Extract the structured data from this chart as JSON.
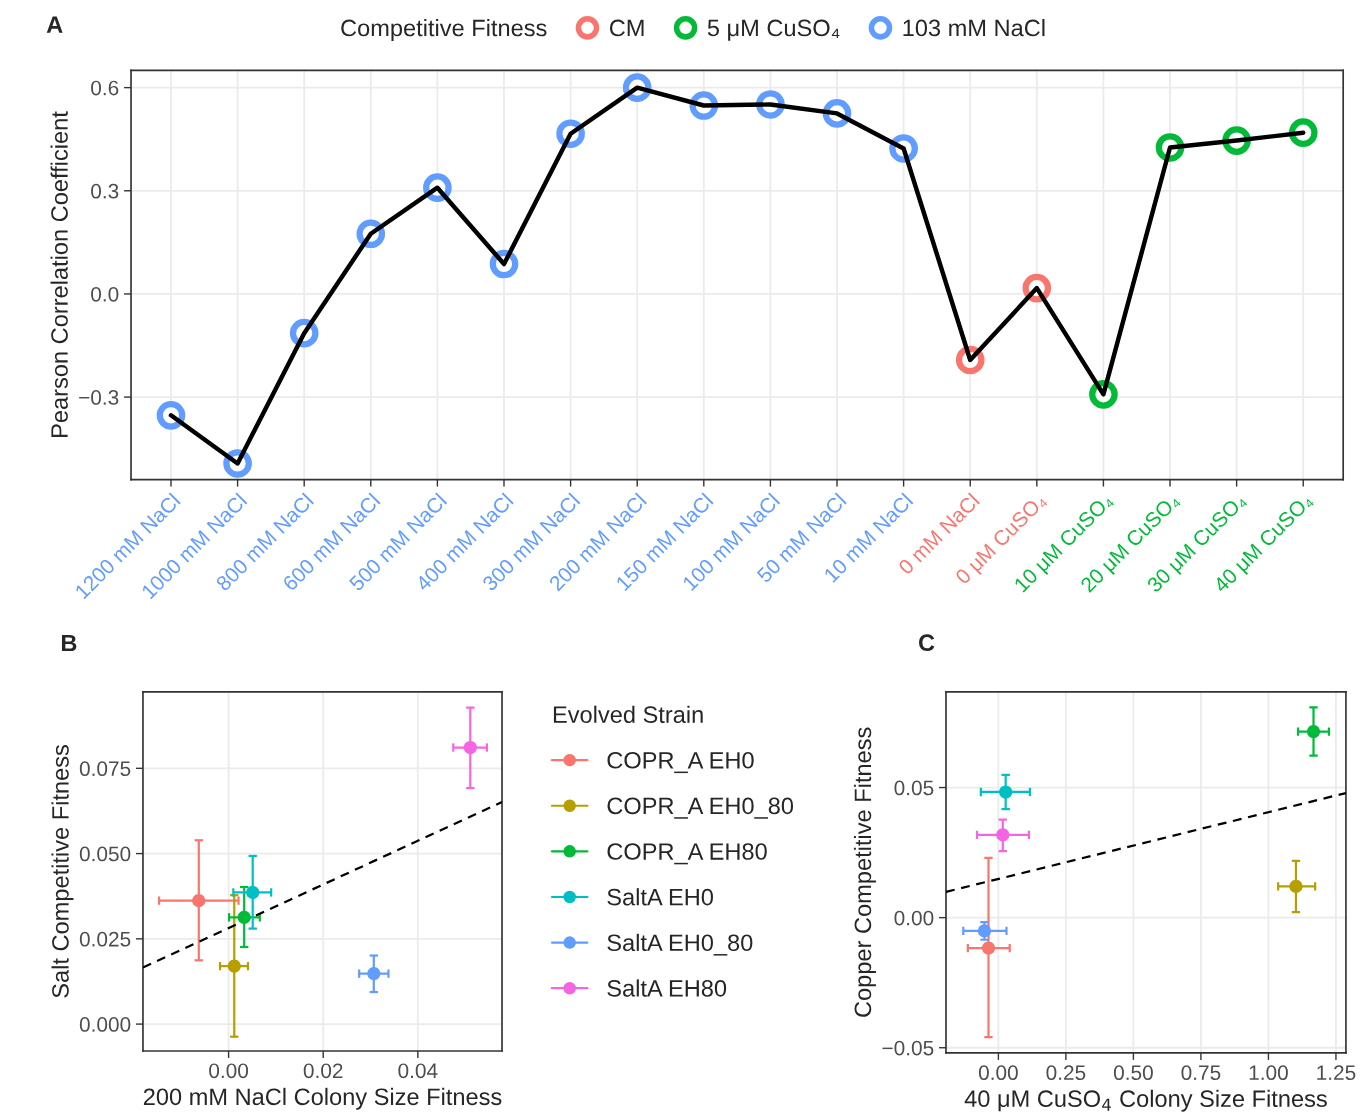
{
  "chart_data": [
    {
      "type": "line",
      "annotations": [
        "A"
      ],
      "ylabel": "Pearson Correlation Coefficient",
      "legend_title": "Competitive Fitness",
      "legend": "top",
      "grid": true,
      "categories": [
        "1200 mM NaCl",
        "1000 mM NaCl",
        "800 mM NaCl",
        "600 mM NaCl",
        "500 mM NaCl",
        "400 mM NaCl",
        "300 mM NaCl",
        "200 mM NaCl",
        "150 mM NaCl",
        "100 mM NaCl",
        "50 mM NaCl",
        "10 mM NaCl",
        "0 mM NaCl",
        "0 μM CuSO₄",
        "10 μM CuSO₄",
        "20 μM CuSO₄",
        "30 μM CuSO₄",
        "40 μM CuSO₄"
      ],
      "ylim": [
        -0.54,
        0.65
      ],
      "yticks": [
        {
          "value": -0.3,
          "label": "−0.3"
        },
        {
          "value": 0,
          "label": "0.0"
        },
        0.3,
        0.6
      ],
      "series": [
        {
          "type": "line",
          "color": "#000000",
          "marker": "none",
          "values": [
            -0.353,
            -0.493,
            -0.114,
            0.175,
            0.309,
            0.087,
            0.466,
            0.6,
            0.548,
            0.551,
            0.525,
            0.423,
            -0.192,
            0.017,
            -0.292,
            0.426,
            0.446,
            0.469
          ]
        },
        {
          "type": "scatter",
          "name": "CM",
          "color": "#f8766d",
          "marker": "circle",
          "values": [
            null,
            null,
            null,
            null,
            null,
            null,
            null,
            null,
            null,
            null,
            null,
            null,
            -0.192,
            0.017,
            null,
            null,
            null,
            null
          ]
        },
        {
          "type": "scatter",
          "name": "5 μM CuSO₄",
          "color": "#00ba38",
          "marker": "circle",
          "values": [
            null,
            null,
            null,
            null,
            null,
            null,
            null,
            null,
            null,
            null,
            null,
            null,
            null,
            null,
            -0.292,
            0.426,
            0.446,
            0.469
          ]
        },
        {
          "type": "scatter",
          "name": "103 mM NaCl",
          "color": "#619cff",
          "marker": "circle",
          "values": [
            -0.353,
            -0.493,
            -0.114,
            0.175,
            0.309,
            0.087,
            0.466,
            0.6,
            0.548,
            0.551,
            0.525,
            0.423,
            null,
            null,
            null,
            null,
            null,
            null
          ]
        }
      ]
    },
    {
      "type": "scatter",
      "annotations": [
        "B"
      ],
      "xlabel": "200 mM NaCl Colony Size Fitness",
      "ylabel": "Salt Competitive Fitness",
      "legend_title": "Evolved Strain",
      "legend": "right",
      "grid": true,
      "marker": "circle",
      "xlim": [
        -0.0181,
        0.0578
      ],
      "xticks": [
        {
          "value": 0,
          "label": "0.00"
        },
        {
          "value": 0.02,
          "label": "0.02"
        },
        {
          "value": 0.04,
          "label": "0.04"
        }
      ],
      "ylim": [
        -0.0079,
        0.0974
      ],
      "yticks": [
        {
          "value": 0,
          "label": "0.000"
        },
        {
          "value": 0.025,
          "label": "0.025"
        },
        {
          "value": 0.05,
          "label": "0.050"
        },
        {
          "value": 0.075,
          "label": "0.075"
        }
      ],
      "series": [
        {
          "name": "COPR_A EH0",
          "color": "#f8766d",
          "x": [
            -0.0063
          ],
          "values": [
            0.0362
          ],
          "xerrors": [
            [
              -0.0147,
              0.0021
            ]
          ],
          "errors": [
            [
              0.0187,
              0.0539
            ]
          ]
        },
        {
          "name": "COPR_A EH0_80",
          "color": "#b79f00",
          "x": [
            0.0012
          ],
          "values": [
            0.017
          ],
          "xerrors": [
            [
              -0.0018,
              0.0041
            ]
          ],
          "errors": [
            [
              -0.0037,
              0.0378
            ]
          ]
        },
        {
          "name": "COPR_A EH80",
          "color": "#00ba38",
          "x": [
            0.0033
          ],
          "values": [
            0.0313
          ],
          "xerrors": [
            [
              0.0001,
              0.0066
            ]
          ],
          "errors": [
            [
              0.0226,
              0.0402
            ]
          ]
        },
        {
          "name": "SaltA EH0",
          "color": "#00bfc4",
          "x": [
            0.0051
          ],
          "values": [
            0.0386
          ],
          "xerrors": [
            [
              0.001,
              0.009
            ]
          ],
          "errors": [
            [
              0.028,
              0.0493
            ]
          ]
        },
        {
          "name": "SaltA EH0_80",
          "color": "#619cff",
          "x": [
            0.0307
          ],
          "values": [
            0.0148
          ],
          "xerrors": [
            [
              0.0276,
              0.0338
            ]
          ],
          "errors": [
            [
              0.0094,
              0.0201
            ]
          ]
        },
        {
          "name": "SaltA EH80",
          "color": "#f564e3",
          "x": [
            0.0511
          ],
          "values": [
            0.0811
          ],
          "xerrors": [
            [
              0.0475,
              0.0546
            ]
          ],
          "errors": [
            [
              0.0692,
              0.0928
            ]
          ]
        },
        {
          "type": "line",
          "color": "#000000",
          "line_style": "dashed",
          "marker": "none",
          "x": [
            -0.0181,
            0.0578
          ],
          "values": [
            0.0166,
            0.0651
          ]
        }
      ]
    },
    {
      "type": "scatter",
      "annotations": [
        "C"
      ],
      "xlabel": "40 μM CuSO$_{4}$ Colony Size Fitness",
      "ylabel": "Copper Competitive Fitness",
      "grid": true,
      "marker": "circle",
      "xlim": [
        -0.194,
        1.287
      ],
      "xticks": [
        {
          "value": 0,
          "label": "0.00"
        },
        0.25,
        {
          "value": 0.5,
          "label": "0.50"
        },
        0.75,
        {
          "value": 1,
          "label": "1.00"
        },
        1.25
      ],
      "ylim": [
        -0.052,
        0.0868
      ],
      "yticks": [
        {
          "value": -0.05,
          "label": "−0.05"
        },
        {
          "value": 0,
          "label": "0.00"
        },
        0.05
      ],
      "series": [
        {
          "color": "#f8766d",
          "x": [
            -0.0366
          ],
          "values": [
            -0.0117
          ],
          "xerrors": [
            [
              -0.113,
              0.042
            ]
          ],
          "errors": [
            [
              -0.0459,
              0.023
            ]
          ]
        },
        {
          "color": "#b79f00",
          "x": [
            1.102
          ],
          "values": [
            0.012
          ],
          "xerrors": [
            [
              1.036,
              1.173
            ]
          ],
          "errors": [
            [
              0.0021,
              0.0218
            ]
          ]
        },
        {
          "color": "#00ba38",
          "x": [
            1.167
          ],
          "values": [
            0.0715
          ],
          "xerrors": [
            [
              1.11,
              1.224
            ]
          ],
          "errors": [
            [
              0.0623,
              0.0808
            ]
          ]
        },
        {
          "color": "#00bfc4",
          "x": [
            0.027
          ],
          "values": [
            0.0483
          ],
          "xerrors": [
            [
              -0.065,
              0.117
            ]
          ],
          "errors": [
            [
              0.0417,
              0.0549
            ]
          ]
        },
        {
          "color": "#619cff",
          "x": [
            -0.0516
          ],
          "values": [
            -0.0051
          ],
          "xerrors": [
            [
              -0.13,
              0.03
            ]
          ],
          "errors": [
            [
              -0.0085,
              -0.0017
            ]
          ]
        },
        {
          "color": "#f564e3",
          "x": [
            0.0163
          ],
          "values": [
            0.0318
          ],
          "xerrors": [
            [
              -0.079,
              0.113
            ]
          ],
          "errors": [
            [
              0.0256,
              0.0377
            ]
          ]
        },
        {
          "type": "line",
          "color": "#000000",
          "line_style": "dashed",
          "marker": "none",
          "x": [
            -0.194,
            1.287
          ],
          "values": [
            0.0099,
            0.0479
          ]
        }
      ]
    }
  ]
}
